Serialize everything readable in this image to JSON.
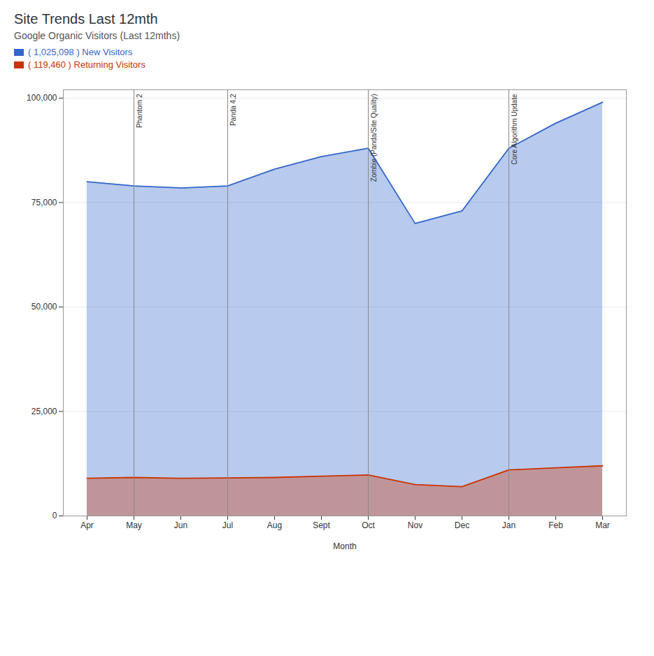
{
  "chart_data": {
    "type": "area",
    "title": "Site Trends Last 12mth",
    "subtitle": "Google Organic Visitors (Last 12mths)",
    "x_label": "Month",
    "categories": [
      "Apr",
      "May",
      "Jun",
      "Jul",
      "Aug",
      "Sept",
      "Oct",
      "Nov",
      "Dec",
      "Jan",
      "Feb",
      "Mar"
    ],
    "series": [
      {
        "name": "( 1,025,098 ) New Visitors",
        "color": "#3366cc",
        "values": [
          80000,
          79000,
          78500,
          79000,
          83000,
          86000,
          88000,
          70000,
          73000,
          88000,
          94000,
          99000
        ]
      },
      {
        "name": "( 119,460 ) Returning Visitors",
        "color": "#cc3300",
        "values": [
          9000,
          9200,
          9000,
          9100,
          9200,
          9500,
          9800,
          7500,
          7000,
          11000,
          11500,
          12000
        ]
      }
    ],
    "ylim": [
      0,
      102000
    ],
    "yticks": [
      0,
      {
        "value": 25000,
        "label": "25,000"
      },
      {
        "value": 50000,
        "label": "50,000"
      },
      {
        "value": 75000,
        "label": "75,000"
      },
      {
        "value": 100000,
        "label": "100,000"
      }
    ],
    "grid": true,
    "stacked": false,
    "legend": "upper left",
    "annotations": [
      {
        "x": "May",
        "label": "Phantom 2"
      },
      {
        "x": "Jul",
        "label": "Panda 4.2"
      },
      {
        "x": "Oct",
        "label": "Zombie (Panda/Site Quality)"
      },
      {
        "x": "Jan",
        "label": "Core Algorithm Update"
      }
    ]
  }
}
